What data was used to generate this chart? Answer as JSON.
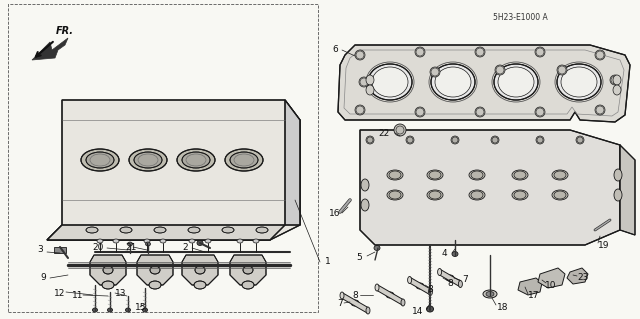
{
  "figsize": [
    6.4,
    3.19
  ],
  "dpi": 100,
  "bg": "#f5f5f0",
  "lc": "#1a1a1a",
  "diagram_code": "5H23-E1000 A"
}
